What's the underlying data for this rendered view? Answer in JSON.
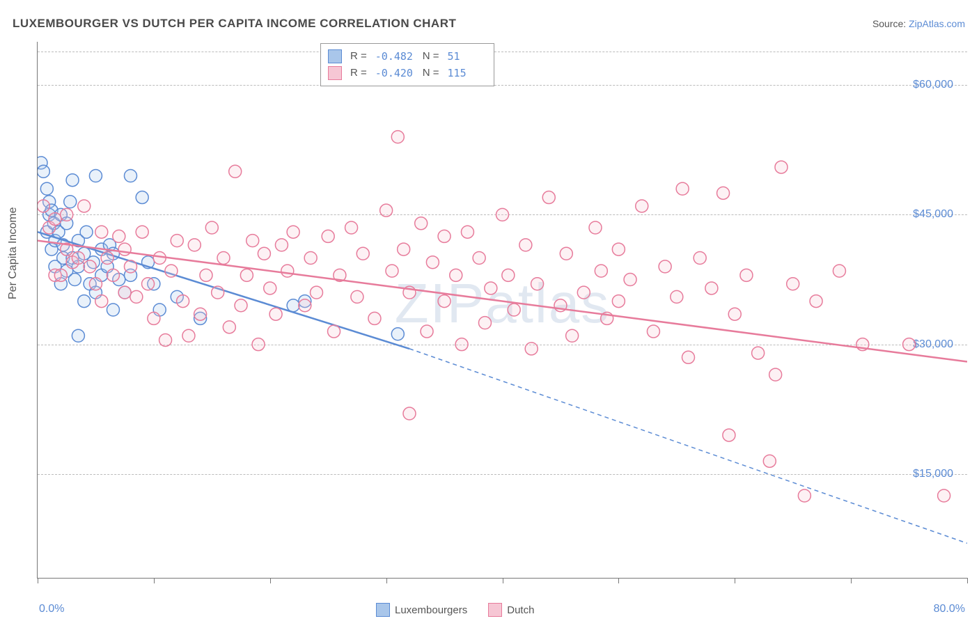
{
  "title": "LUXEMBOURGER VS DUTCH PER CAPITA INCOME CORRELATION CHART",
  "source_prefix": "Source: ",
  "source_name": "ZipAtlas.com",
  "watermark": "ZIPatlas",
  "yaxis_label": "Per Capita Income",
  "xaxis": {
    "min_label": "0.0%",
    "max_label": "80.0%",
    "min": 0,
    "max": 80
  },
  "yaxis": {
    "min": 3000,
    "max": 65000
  },
  "y_gridlines": [
    {
      "value": 15000,
      "label": "$15,000"
    },
    {
      "value": 30000,
      "label": "$30,000"
    },
    {
      "value": 45000,
      "label": "$45,000"
    },
    {
      "value": 60000,
      "label": "$60,000"
    }
  ],
  "x_ticks": [
    0,
    10,
    20,
    30,
    40,
    50,
    60,
    70,
    80
  ],
  "chart": {
    "type": "scatter",
    "background_color": "#ffffff",
    "grid_color": "#bbbbbb",
    "border_color": "#777777",
    "marker_radius": 9,
    "marker_stroke_width": 1.5,
    "marker_fill_opacity": 0.25,
    "trend_line_width": 2.5
  },
  "series": [
    {
      "name": "Luxembourgers",
      "color_stroke": "#5b8bd4",
      "color_fill": "#a9c6ea",
      "R": "-0.482",
      "N": "51",
      "trend": {
        "x1": 0,
        "y1": 43000,
        "x2": 32,
        "y2": 29500,
        "dash_from_x": 32,
        "dash_to_x": 80,
        "dash_to_y": 7000
      },
      "points": [
        [
          0.3,
          51000
        ],
        [
          0.5,
          50000
        ],
        [
          0.8,
          48000
        ],
        [
          0.8,
          43000
        ],
        [
          1.0,
          46500
        ],
        [
          1.0,
          45000
        ],
        [
          1.2,
          45500
        ],
        [
          1.2,
          41000
        ],
        [
          1.4,
          44000
        ],
        [
          1.5,
          39000
        ],
        [
          1.5,
          42000
        ],
        [
          1.8,
          43000
        ],
        [
          2.0,
          45000
        ],
        [
          2.0,
          37000
        ],
        [
          2.2,
          40000
        ],
        [
          2.2,
          41500
        ],
        [
          2.5,
          38500
        ],
        [
          2.5,
          44000
        ],
        [
          2.8,
          46500
        ],
        [
          3.0,
          49000
        ],
        [
          3.0,
          40000
        ],
        [
          3.2,
          37500
        ],
        [
          3.5,
          39000
        ],
        [
          3.5,
          42000
        ],
        [
          3.5,
          31000
        ],
        [
          4.0,
          40500
        ],
        [
          4.0,
          35000
        ],
        [
          4.2,
          43000
        ],
        [
          4.5,
          37000
        ],
        [
          4.8,
          39500
        ],
        [
          5.0,
          49500
        ],
        [
          5.0,
          36000
        ],
        [
          5.5,
          38000
        ],
        [
          5.5,
          41000
        ],
        [
          6.0,
          39000
        ],
        [
          6.2,
          41500
        ],
        [
          6.5,
          34000
        ],
        [
          6.5,
          40500
        ],
        [
          7.0,
          37500
        ],
        [
          7.5,
          36000
        ],
        [
          8.0,
          49500
        ],
        [
          8.0,
          38000
        ],
        [
          9.0,
          47000
        ],
        [
          9.5,
          39500
        ],
        [
          10.0,
          37000
        ],
        [
          10.5,
          34000
        ],
        [
          12.0,
          35500
        ],
        [
          14.0,
          33000
        ],
        [
          22.0,
          34500
        ],
        [
          23.0,
          35000
        ],
        [
          31.0,
          31200
        ]
      ]
    },
    {
      "name": "Dutch",
      "color_stroke": "#e77b9b",
      "color_fill": "#f6c6d4",
      "R": "-0.420",
      "N": "115",
      "trend": {
        "x1": 0,
        "y1": 42000,
        "x2": 80,
        "y2": 28000,
        "dash_from_x": 80,
        "dash_to_x": 80,
        "dash_to_y": 28000
      },
      "points": [
        [
          0.5,
          46000
        ],
        [
          1.0,
          43500
        ],
        [
          1.5,
          44500
        ],
        [
          1.5,
          38000
        ],
        [
          2.0,
          38000
        ],
        [
          2.5,
          45000
        ],
        [
          2.5,
          41000
        ],
        [
          3.0,
          39500
        ],
        [
          3.5,
          40000
        ],
        [
          4.0,
          46000
        ],
        [
          4.5,
          39000
        ],
        [
          5.0,
          37000
        ],
        [
          5.5,
          43000
        ],
        [
          5.5,
          35000
        ],
        [
          6.0,
          40000
        ],
        [
          6.5,
          38000
        ],
        [
          7.0,
          42500
        ],
        [
          7.5,
          36000
        ],
        [
          7.5,
          41000
        ],
        [
          8.0,
          39000
        ],
        [
          8.5,
          35500
        ],
        [
          9.0,
          43000
        ],
        [
          9.5,
          37000
        ],
        [
          10.0,
          33000
        ],
        [
          10.5,
          40000
        ],
        [
          11.0,
          30500
        ],
        [
          11.5,
          38500
        ],
        [
          12.0,
          42000
        ],
        [
          12.5,
          35000
        ],
        [
          13.0,
          31000
        ],
        [
          13.5,
          41500
        ],
        [
          14.0,
          33500
        ],
        [
          14.5,
          38000
        ],
        [
          15.0,
          43500
        ],
        [
          15.5,
          36000
        ],
        [
          16.0,
          40000
        ],
        [
          16.5,
          32000
        ],
        [
          17.0,
          50000
        ],
        [
          17.5,
          34500
        ],
        [
          18.0,
          38000
        ],
        [
          18.5,
          42000
        ],
        [
          19.0,
          30000
        ],
        [
          19.5,
          40500
        ],
        [
          20.0,
          36500
        ],
        [
          20.5,
          33500
        ],
        [
          21.0,
          41500
        ],
        [
          21.5,
          38500
        ],
        [
          22.0,
          43000
        ],
        [
          23.0,
          34500
        ],
        [
          23.5,
          40000
        ],
        [
          24.0,
          36000
        ],
        [
          25.0,
          42500
        ],
        [
          25.5,
          31500
        ],
        [
          26.0,
          38000
        ],
        [
          27.0,
          43500
        ],
        [
          27.5,
          35500
        ],
        [
          28.0,
          40500
        ],
        [
          29.0,
          33000
        ],
        [
          30.0,
          45500
        ],
        [
          30.5,
          38500
        ],
        [
          31.0,
          54000
        ],
        [
          31.5,
          41000
        ],
        [
          32.0,
          22000
        ],
        [
          32.0,
          36000
        ],
        [
          33.0,
          44000
        ],
        [
          33.5,
          31500
        ],
        [
          34.0,
          39500
        ],
        [
          35.0,
          42500
        ],
        [
          35.0,
          35000
        ],
        [
          36.0,
          38000
        ],
        [
          36.5,
          30000
        ],
        [
          37.0,
          43000
        ],
        [
          38.0,
          40000
        ],
        [
          38.5,
          32500
        ],
        [
          39.0,
          36500
        ],
        [
          40.0,
          45000
        ],
        [
          40.5,
          38000
        ],
        [
          41.0,
          34000
        ],
        [
          42.0,
          41500
        ],
        [
          42.5,
          29500
        ],
        [
          43.0,
          37000
        ],
        [
          44.0,
          47000
        ],
        [
          45.0,
          34500
        ],
        [
          45.5,
          40500
        ],
        [
          46.0,
          31000
        ],
        [
          47.0,
          36000
        ],
        [
          48.0,
          43500
        ],
        [
          48.5,
          38500
        ],
        [
          49.0,
          33000
        ],
        [
          50.0,
          41000
        ],
        [
          50.0,
          35000
        ],
        [
          51.0,
          37500
        ],
        [
          52.0,
          46000
        ],
        [
          53.0,
          31500
        ],
        [
          54.0,
          39000
        ],
        [
          55.0,
          35500
        ],
        [
          55.5,
          48000
        ],
        [
          56.0,
          28500
        ],
        [
          57.0,
          40000
        ],
        [
          58.0,
          36500
        ],
        [
          59.0,
          47500
        ],
        [
          59.5,
          19500
        ],
        [
          60.0,
          33500
        ],
        [
          61.0,
          38000
        ],
        [
          62.0,
          29000
        ],
        [
          63.0,
          16500
        ],
        [
          63.5,
          26500
        ],
        [
          64.0,
          50500
        ],
        [
          65.0,
          37000
        ],
        [
          66.0,
          12500
        ],
        [
          67.0,
          35000
        ],
        [
          69.0,
          38500
        ],
        [
          71.0,
          30000
        ],
        [
          75.0,
          30000
        ],
        [
          78.0,
          12500
        ]
      ]
    }
  ],
  "legend_labels": {
    "R": "R =",
    "N": "N ="
  },
  "bottom_legend": [
    "Luxembourgers",
    "Dutch"
  ]
}
